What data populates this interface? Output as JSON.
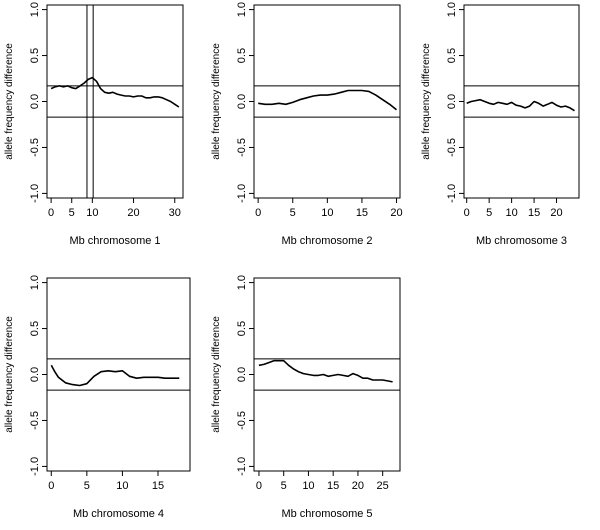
{
  "chart_data": [
    {
      "type": "line",
      "title": "",
      "xlabel": "Mb chromosome 1",
      "ylabel": "allele frequency difference",
      "xlim": [
        -1,
        32
      ],
      "ylim": [
        -1.05,
        1.05
      ],
      "xticks": [
        0,
        5,
        10,
        20,
        30
      ],
      "yticks": [
        -1.0,
        -0.5,
        0.0,
        0.5,
        1.0
      ],
      "ytick_labels": [
        "-1.0",
        "-0.5",
        "0.0",
        "0.5",
        "1.0"
      ],
      "hlines": [
        0.17,
        -0.17
      ],
      "vlines": [
        8.7,
        10.2
      ],
      "series": [
        {
          "name": "allele frequency difference",
          "x": [
            0,
            1,
            2,
            3,
            4,
            5,
            6,
            7,
            8,
            9,
            10,
            11,
            12,
            13,
            14,
            15,
            16,
            17,
            18,
            19,
            20,
            21,
            22,
            23,
            24,
            25,
            26,
            27,
            28,
            29,
            30,
            31
          ],
          "y": [
            0.14,
            0.16,
            0.17,
            0.16,
            0.17,
            0.15,
            0.14,
            0.17,
            0.2,
            0.24,
            0.26,
            0.22,
            0.14,
            0.1,
            0.09,
            0.1,
            0.08,
            0.07,
            0.06,
            0.06,
            0.05,
            0.06,
            0.06,
            0.04,
            0.04,
            0.05,
            0.05,
            0.04,
            0.02,
            0.0,
            -0.03,
            -0.06
          ]
        }
      ]
    },
    {
      "type": "line",
      "title": "",
      "xlabel": "Mb chromosome 2",
      "ylabel": "allele frequency difference",
      "xlim": [
        -0.6,
        20.5
      ],
      "ylim": [
        -1.05,
        1.05
      ],
      "xticks": [
        0,
        5,
        10,
        15,
        20
      ],
      "yticks": [
        -1.0,
        -0.5,
        0.0,
        0.5,
        1.0
      ],
      "ytick_labels": [
        "-1.0",
        "-0.5",
        "0.0",
        "0.5",
        "1.0"
      ],
      "hlines": [
        0.17,
        -0.17
      ],
      "vlines": [],
      "series": [
        {
          "name": "allele frequency difference",
          "x": [
            0,
            1,
            2,
            3,
            4,
            5,
            6,
            7,
            8,
            9,
            10,
            11,
            12,
            13,
            14,
            15,
            16,
            17,
            18,
            19,
            20
          ],
          "y": [
            -0.02,
            -0.03,
            -0.03,
            -0.02,
            -0.03,
            -0.01,
            0.02,
            0.04,
            0.06,
            0.07,
            0.07,
            0.08,
            0.1,
            0.12,
            0.12,
            0.12,
            0.11,
            0.07,
            0.02,
            -0.03,
            -0.09
          ]
        }
      ]
    },
    {
      "type": "line",
      "title": "",
      "xlabel": "Mb chromosome 3",
      "ylabel": "allele frequency difference",
      "xlim": [
        -0.6,
        25
      ],
      "ylim": [
        -1.05,
        1.05
      ],
      "xticks": [
        0,
        5,
        10,
        15,
        20
      ],
      "yticks": [
        -1.0,
        -0.5,
        0.0,
        0.5,
        1.0
      ],
      "ytick_labels": [
        "-1.0",
        "-0.5",
        "0.0",
        "0.5",
        "1.0"
      ],
      "hlines": [
        0.17,
        -0.17
      ],
      "vlines": [],
      "series": [
        {
          "name": "allele frequency difference",
          "x": [
            0,
            1,
            2,
            3,
            4,
            5,
            6,
            7,
            8,
            9,
            10,
            11,
            12,
            13,
            14,
            15,
            16,
            17,
            18,
            19,
            20,
            21,
            22,
            23,
            24
          ],
          "y": [
            -0.02,
            0.0,
            0.01,
            0.02,
            0.0,
            -0.02,
            -0.03,
            -0.01,
            -0.02,
            -0.03,
            -0.01,
            -0.04,
            -0.05,
            -0.07,
            -0.05,
            0.0,
            -0.02,
            -0.05,
            -0.03,
            -0.01,
            -0.04,
            -0.06,
            -0.05,
            -0.07,
            -0.1
          ]
        }
      ]
    },
    {
      "type": "line",
      "title": "",
      "xlabel": "Mb chromosome 4",
      "ylabel": "allele frequency difference",
      "xlim": [
        -0.6,
        19.5
      ],
      "ylim": [
        -1.05,
        1.05
      ],
      "xticks": [
        0,
        5,
        10,
        15
      ],
      "yticks": [
        -1.0,
        -0.5,
        0.0,
        0.5,
        1.0
      ],
      "ytick_labels": [
        "-1.0",
        "-0.5",
        "0.0",
        "0.5",
        "1.0"
      ],
      "hlines": [
        0.17,
        -0.17
      ],
      "vlines": [],
      "series": [
        {
          "name": "allele frequency difference",
          "x": [
            0,
            0.5,
            1,
            2,
            3,
            4,
            5,
            6,
            7,
            8,
            9,
            10,
            11,
            12,
            13,
            14,
            15,
            16,
            17,
            18
          ],
          "y": [
            0.1,
            0.03,
            -0.03,
            -0.09,
            -0.11,
            -0.12,
            -0.1,
            -0.02,
            0.03,
            0.04,
            0.03,
            0.04,
            -0.02,
            -0.04,
            -0.03,
            -0.03,
            -0.03,
            -0.04,
            -0.04,
            -0.04
          ]
        }
      ]
    },
    {
      "type": "line",
      "title": "",
      "xlabel": "Mb chromosome 5",
      "ylabel": "allele frequency difference",
      "xlim": [
        -1,
        28.5
      ],
      "ylim": [
        -1.05,
        1.05
      ],
      "xticks": [
        0,
        5,
        10,
        15,
        20,
        25
      ],
      "yticks": [
        -1.0,
        -0.5,
        0.0,
        0.5,
        1.0
      ],
      "ytick_labels": [
        "-1.0",
        "-0.5",
        "0.0",
        "0.5",
        "1.0"
      ],
      "hlines": [
        0.17,
        -0.17
      ],
      "vlines": [],
      "series": [
        {
          "name": "allele frequency difference",
          "x": [
            0,
            1,
            2,
            3,
            4,
            5,
            6,
            7,
            8,
            9,
            10,
            11,
            12,
            13,
            14,
            15,
            16,
            17,
            18,
            19,
            20,
            21,
            22,
            23,
            24,
            25,
            26,
            27
          ],
          "y": [
            0.1,
            0.11,
            0.13,
            0.15,
            0.15,
            0.15,
            0.1,
            0.06,
            0.03,
            0.01,
            0.0,
            -0.01,
            -0.01,
            0.0,
            -0.02,
            -0.01,
            0.0,
            -0.01,
            -0.02,
            0.01,
            -0.01,
            -0.04,
            -0.04,
            -0.06,
            -0.06,
            -0.06,
            -0.07,
            -0.08
          ]
        }
      ]
    }
  ]
}
